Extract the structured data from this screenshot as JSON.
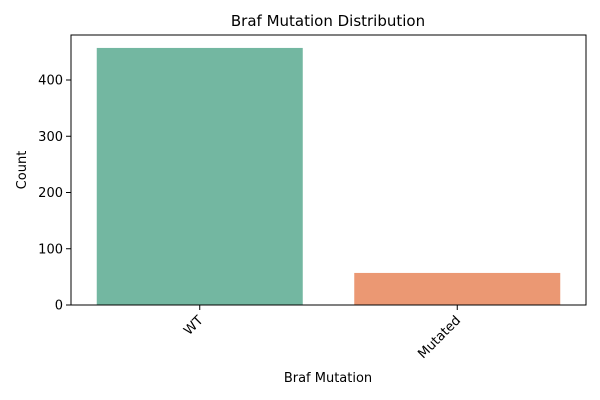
{
  "chart_data": {
    "type": "bar",
    "title": "Braf Mutation Distribution",
    "xlabel": "Braf Mutation",
    "ylabel": "Count",
    "categories": [
      "WT",
      "Mutated"
    ],
    "values": [
      457,
      57
    ],
    "colors": [
      "#73b7a1",
      "#eb9873"
    ],
    "ylim": [
      0,
      480
    ],
    "yticks": [
      0,
      100,
      200,
      300,
      400
    ],
    "grid": false,
    "legend": "none"
  }
}
